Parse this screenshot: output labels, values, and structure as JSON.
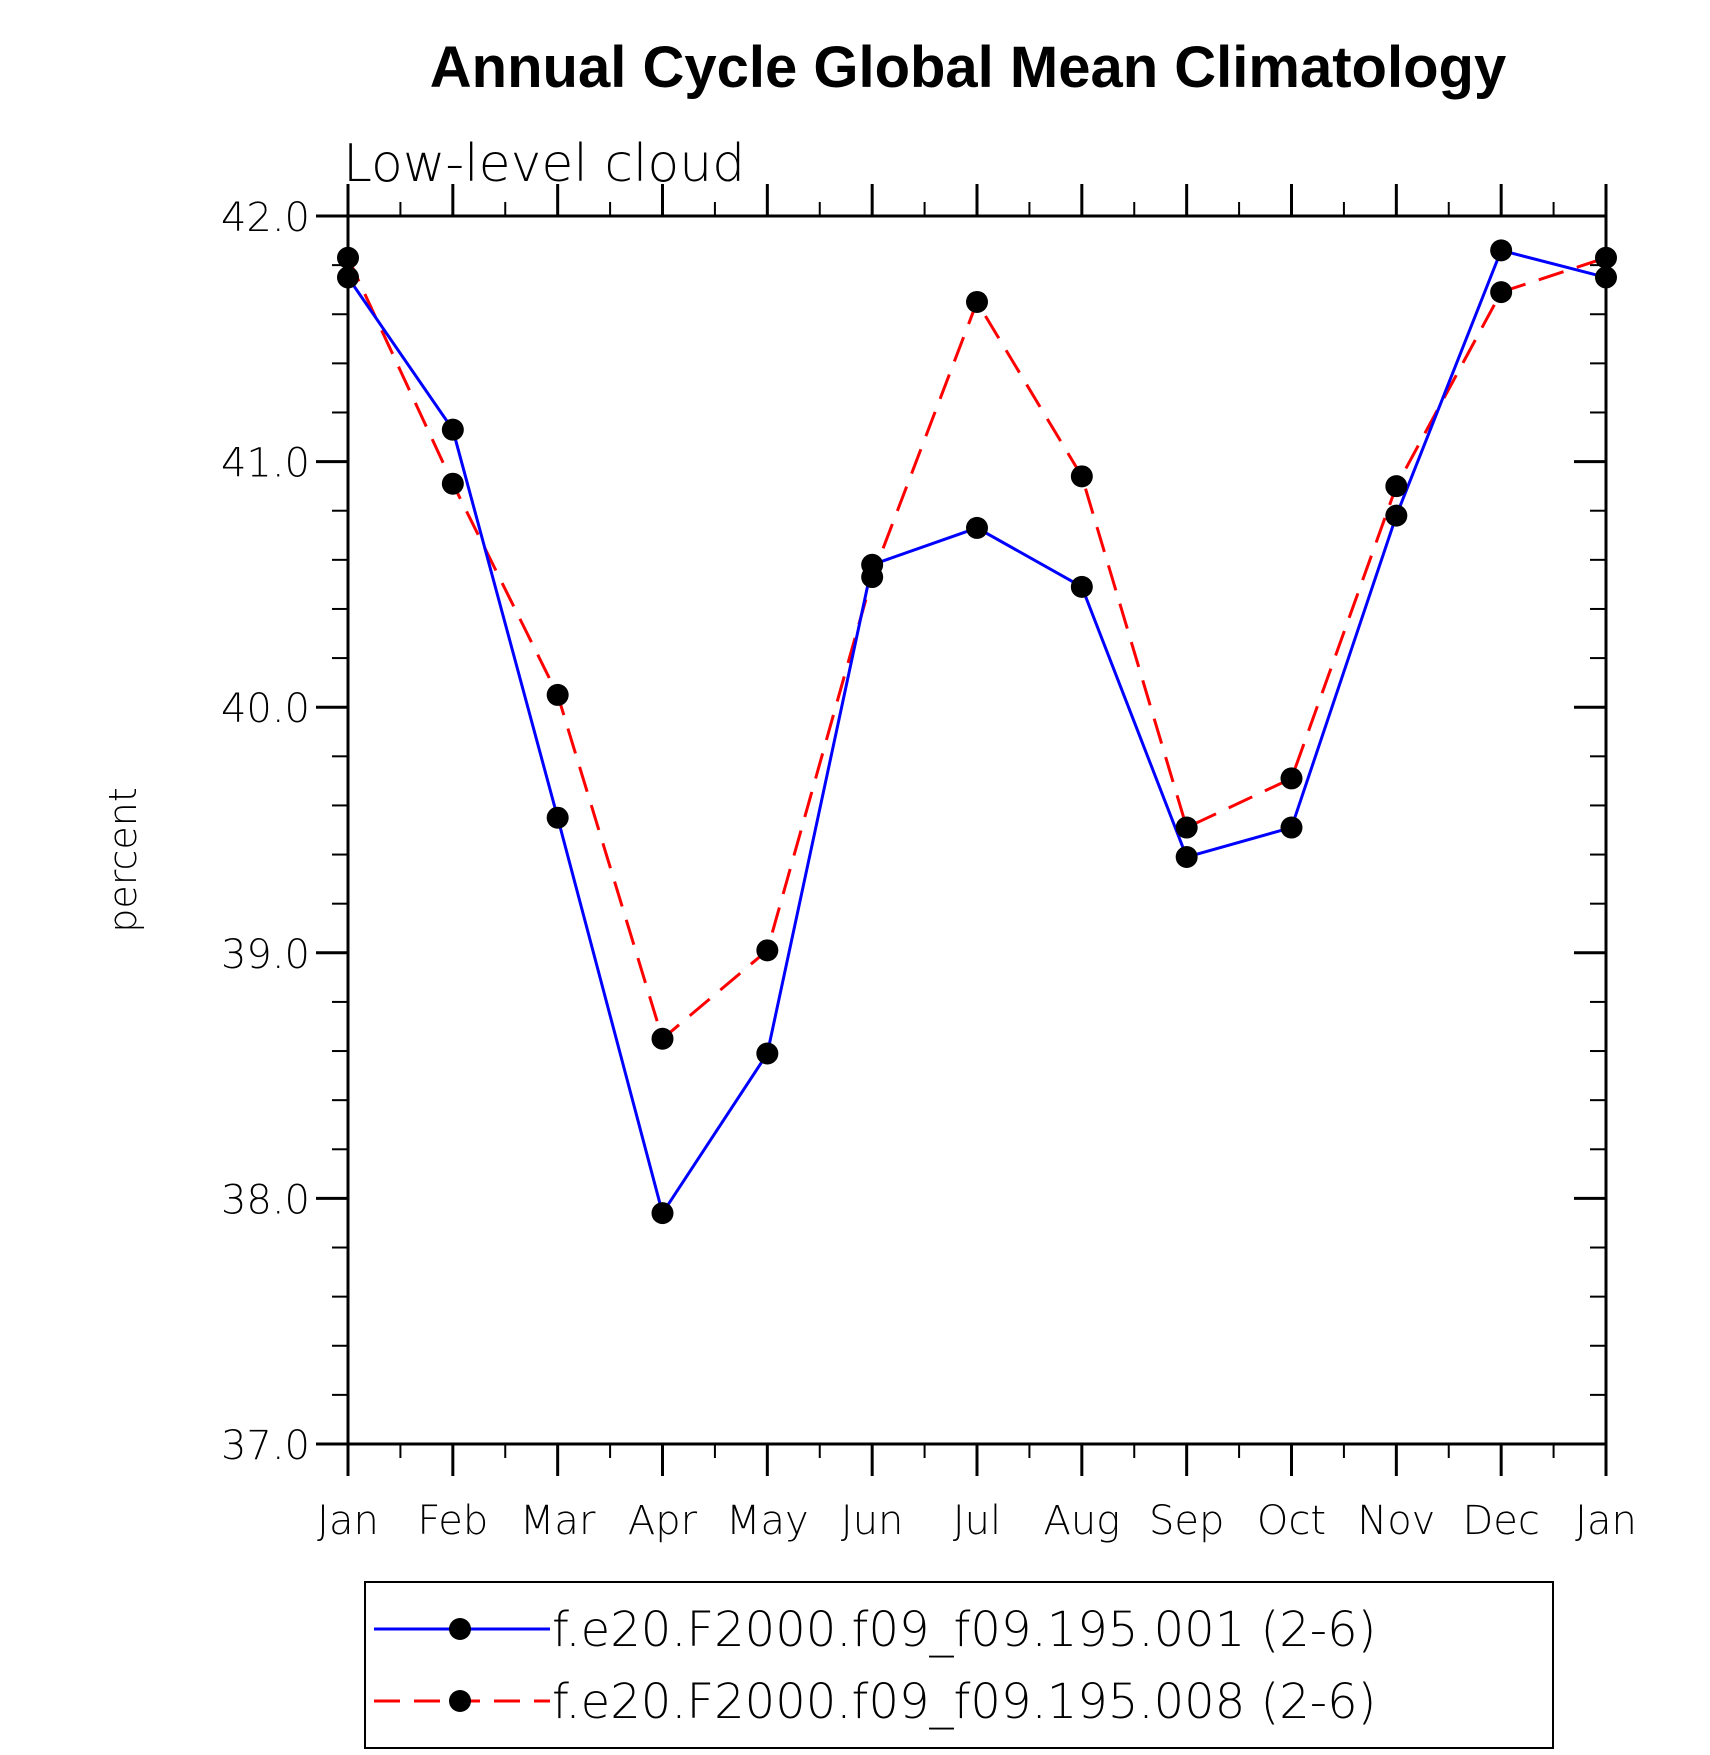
{
  "chart_data": {
    "type": "line",
    "title": "Annual Cycle Global Mean Climatology",
    "subtitle": "Low-level cloud",
    "xlabel": "",
    "ylabel": "percent",
    "categories": [
      "Jan",
      "Feb",
      "Mar",
      "Apr",
      "May",
      "Jun",
      "Jul",
      "Aug",
      "Sep",
      "Oct",
      "Nov",
      "Dec",
      "Jan"
    ],
    "ylim": [
      37.0,
      42.0
    ],
    "yticks": [
      "37.0",
      "38.0",
      "39.0",
      "40.0",
      "41.0",
      "42.0"
    ],
    "grid": false,
    "legend_position": "bottom",
    "series": [
      {
        "name": "f.e20.F2000.f09_f09.195.001 (2-6)",
        "color": "#0000ff",
        "line_style": "solid",
        "marker": "filled-circle",
        "values": [
          41.75,
          41.13,
          39.55,
          37.94,
          38.59,
          40.58,
          40.73,
          40.49,
          39.39,
          39.51,
          40.78,
          41.86,
          41.75
        ]
      },
      {
        "name": "f.e20.F2000.f09_f09.195.008 (2-6)",
        "color": "#ff0000",
        "line_style": "dashed",
        "marker": "filled-circle",
        "values": [
          41.83,
          40.91,
          40.05,
          38.65,
          39.01,
          40.53,
          41.65,
          40.94,
          39.51,
          39.71,
          40.9,
          41.69,
          41.83
        ]
      }
    ]
  }
}
